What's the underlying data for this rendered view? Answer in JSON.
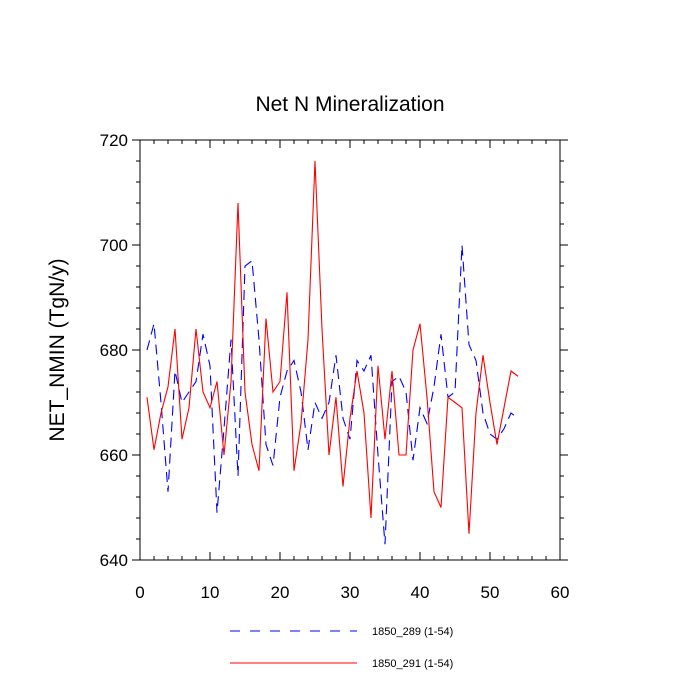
{
  "chart_data": {
    "type": "line",
    "title": "Net N Mineralization",
    "xlabel": "",
    "ylabel": "NET_NMIN  (TgN/y)",
    "xlim": [
      0,
      60
    ],
    "ylim": [
      640,
      720
    ],
    "xticks": [
      0,
      10,
      20,
      30,
      40,
      50,
      60
    ],
    "yticks": [
      640,
      660,
      680,
      700,
      720
    ],
    "xtick_labels": [
      "0",
      "10",
      "20",
      "30",
      "40",
      "50",
      "60"
    ],
    "ytick_labels": [
      "640",
      "660",
      "680",
      "700",
      "720"
    ],
    "grid": false,
    "legend_position": "bottom",
    "series": [
      {
        "name": "1850_289 (1-54)",
        "color": "#0000ff",
        "style": "dashed",
        "x": [
          1,
          2,
          3,
          4,
          5,
          6,
          7,
          8,
          9,
          10,
          11,
          12,
          13,
          14,
          15,
          16,
          17,
          18,
          19,
          20,
          21,
          22,
          23,
          24,
          25,
          26,
          27,
          28,
          29,
          30,
          31,
          32,
          33,
          34,
          35,
          36,
          37,
          38,
          39,
          40,
          41,
          42,
          43,
          44,
          45,
          46,
          47,
          48,
          49,
          50,
          51,
          52,
          53,
          54
        ],
        "values": [
          680,
          685,
          670,
          653,
          676,
          670,
          672,
          674,
          683,
          677,
          649,
          665,
          682,
          656,
          696,
          697,
          682,
          662,
          658,
          671,
          676,
          678,
          672,
          661,
          670,
          667,
          670,
          679,
          667,
          663,
          678,
          676,
          679,
          660,
          643,
          674,
          675,
          672,
          659,
          669,
          666,
          673,
          683,
          671,
          672,
          700,
          681,
          678,
          668,
          664,
          663,
          665,
          668,
          667
        ]
      },
      {
        "name": "1850_291 (1-54)",
        "color": "#ff0000",
        "style": "solid",
        "x": [
          1,
          2,
          3,
          4,
          5,
          6,
          7,
          8,
          9,
          10,
          11,
          12,
          13,
          14,
          15,
          16,
          17,
          18,
          19,
          20,
          21,
          22,
          23,
          24,
          25,
          26,
          27,
          28,
          29,
          30,
          31,
          32,
          33,
          34,
          35,
          36,
          37,
          38,
          39,
          40,
          41,
          42,
          43,
          44,
          45,
          46,
          47,
          48,
          49,
          50,
          51,
          52,
          53,
          54
        ],
        "values": [
          671,
          661,
          668,
          673,
          684,
          663,
          669,
          684,
          672,
          669,
          674,
          660,
          674,
          708,
          672,
          662,
          657,
          686,
          672,
          674,
          691,
          657,
          666,
          682,
          716,
          684,
          660,
          671,
          654,
          667,
          676,
          668,
          648,
          677,
          663,
          676,
          660,
          660,
          680,
          685,
          671,
          653,
          650,
          671,
          670,
          669,
          645,
          668,
          679,
          670,
          662,
          669,
          676,
          675
        ]
      }
    ]
  }
}
